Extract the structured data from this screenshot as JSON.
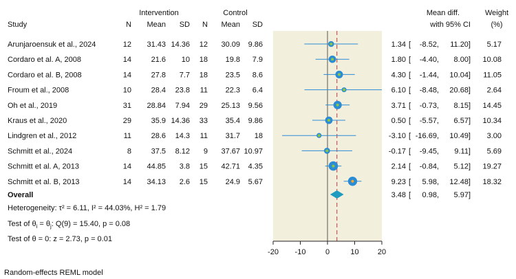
{
  "headers": {
    "study": "Study",
    "intervention": "Intervention",
    "control": "Control",
    "n": "N",
    "mean": "Mean",
    "sd": "SD",
    "mean_diff": "Mean diff.",
    "ci": "with 95% CI",
    "weight": "Weight",
    "weight_unit": "(%)"
  },
  "chart_data": {
    "type": "forest",
    "xlim": [
      -20,
      20
    ],
    "xticks": [
      -20,
      -10,
      0,
      10,
      20
    ],
    "xtick_labels": [
      "-20",
      "-10",
      "0",
      "10",
      "20"
    ],
    "null_line": 0,
    "studies": [
      {
        "name": "Arunjaroensuk et al., 2024",
        "n1": "12",
        "mean1": "31.43",
        "sd1": "14.36",
        "n2": "12",
        "mean2": "30.09",
        "sd2": "9.86",
        "es": 1.34,
        "lo": -8.52,
        "hi": 11.2,
        "es_text": "1.34",
        "lo_text": "-8.52,",
        "hi_text": "11.20]",
        "weight": 5.17,
        "weight_text": "5.17",
        "marker_color": "#8dc63f"
      },
      {
        "name": "Cordaro et al. A, 2008",
        "n1": "14",
        "mean1": "21.6",
        "sd1": "10",
        "n2": "18",
        "mean2": "19.8",
        "sd2": "7.9",
        "es": 1.8,
        "lo": -4.4,
        "hi": 8.0,
        "es_text": "1.80",
        "lo_text": "-4.40,",
        "hi_text": "8.00]",
        "weight": 10.08,
        "weight_text": "10.08",
        "marker_color": "#8dc63f"
      },
      {
        "name": "Cordaro et al. B, 2008",
        "n1": "14",
        "mean1": "27.8",
        "sd1": "7.7",
        "n2": "18",
        "mean2": "23.5",
        "sd2": "8.6",
        "es": 4.3,
        "lo": -1.44,
        "hi": 10.04,
        "es_text": "4.30",
        "lo_text": "-1.44,",
        "hi_text": "10.04]",
        "weight": 11.05,
        "weight_text": "11.05",
        "marker_color": "#8dc63f"
      },
      {
        "name": "Froum et al., 2008",
        "n1": "10",
        "mean1": "28.4",
        "sd1": "23.8",
        "n2": "11",
        "mean2": "22.3",
        "sd2": "6.4",
        "es": 6.1,
        "lo": -8.48,
        "hi": 20.68,
        "es_text": "6.10",
        "lo_text": "-8.48,",
        "hi_text": "20.68]",
        "weight": 2.64,
        "weight_text": "2.64",
        "marker_color": "#8dc63f"
      },
      {
        "name": "Oh et al., 2019",
        "n1": "31",
        "mean1": "28.84",
        "sd1": "7.94",
        "n2": "29",
        "mean2": "25.13",
        "sd2": "9.56",
        "es": 3.71,
        "lo": -0.73,
        "hi": 8.15,
        "es_text": "3.71",
        "lo_text": "-0.73,",
        "hi_text": "8.15]",
        "weight": 14.45,
        "weight_text": "14.45",
        "marker_color": "#8dc63f"
      },
      {
        "name": "Kraus et al., 2020",
        "n1": "29",
        "mean1": "35.9",
        "sd1": "14.36",
        "n2": "33",
        "mean2": "35.4",
        "sd2": "9.86",
        "es": 0.5,
        "lo": -5.57,
        "hi": 6.57,
        "es_text": "0.50",
        "lo_text": "-5.57,",
        "hi_text": "6.57]",
        "weight": 10.34,
        "weight_text": "10.34",
        "marker_color": "#8dc63f"
      },
      {
        "name": "Lindgren et al., 2012",
        "n1": "11",
        "mean1": "28.6",
        "sd1": "14.3",
        "n2": "11",
        "mean2": "31.7",
        "sd2": "18",
        "es": -3.1,
        "lo": -16.69,
        "hi": 10.49,
        "es_text": "-3.10",
        "lo_text": "-16.69,",
        "hi_text": "10.49]",
        "weight": 3.0,
        "weight_text": "3.00",
        "marker_color": "#8dc63f"
      },
      {
        "name": "Schmitt et al., 2024",
        "n1": "8",
        "mean1": "37.5",
        "sd1": "8.12",
        "n2": "9",
        "mean2": "37.67",
        "sd2": "10.97",
        "es": -0.17,
        "lo": -9.45,
        "hi": 9.11,
        "es_text": "-0.17",
        "lo_text": "-9.45,",
        "hi_text": "9.11]",
        "weight": 5.69,
        "weight_text": "5.69",
        "marker_color": "#8dc63f"
      },
      {
        "name": "Schmitt et al. A, 2013",
        "n1": "14",
        "mean1": "44.85",
        "sd1": "3.8",
        "n2": "15",
        "mean2": "42.71",
        "sd2": "4.35",
        "es": 2.14,
        "lo": -0.84,
        "hi": 5.12,
        "es_text": "2.14",
        "lo_text": "-0.84,",
        "hi_text": "5.12]",
        "weight": 19.27,
        "weight_text": "19.27",
        "marker_color": "#8dc63f"
      },
      {
        "name": "Schmitt et al. B, 2013",
        "n1": "14",
        "mean1": "34.13",
        "sd1": "2.6",
        "n2": "15",
        "mean2": "24.9",
        "sd2": "5.67",
        "es": 9.23,
        "lo": 5.98,
        "hi": 12.48,
        "es_text": "9.23",
        "lo_text": "5.98,",
        "hi_text": "12.48]",
        "weight": 18.32,
        "weight_text": "18.32",
        "marker_color": "#f5a623"
      }
    ],
    "overall": {
      "label": "Overall",
      "es": 3.48,
      "lo": 0.98,
      "hi": 5.97,
      "es_text": "3.48",
      "lo_text": "0.98,",
      "hi_text": "5.97]"
    },
    "bracket_open": "[",
    "heterogeneity": "Heterogeneity: τ² = 6.11, I² = 44.03%, H² = 1.79",
    "test_hom": {
      "prefix": "Test of θ",
      "sub1": "i",
      "mid": " = θ",
      "sub2": "j",
      "suffix": ": Q(9) = 15.40, p = 0.08"
    },
    "test_zero": "Test of θ = 0: z = 2.73, p = 0.01",
    "footnote": "Random-effects REML model",
    "colors": {
      "panel_bg": "#f3efdd",
      "ci_line": "#2b8cd6",
      "marker": "#2b8cd6",
      "overall_marker": "#1f9bbf",
      "null_line": "#555555",
      "overall_line": "#cc3333"
    }
  }
}
